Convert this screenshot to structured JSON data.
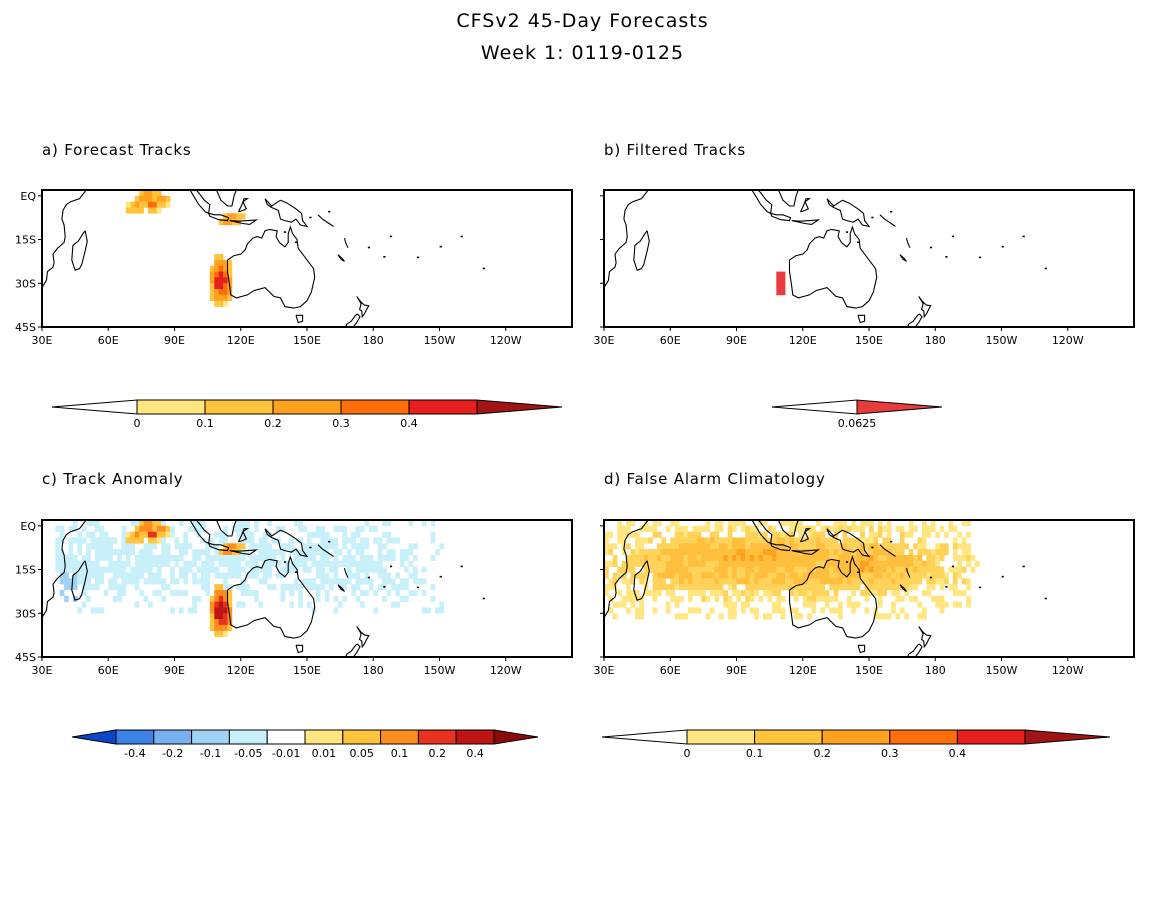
{
  "title": {
    "line1": "CFSv2 45-Day Forecasts",
    "line2": "Week 1: 0119-0125"
  },
  "lon_labels": [
    "30E",
    "60E",
    "90E",
    "120E",
    "150E",
    "180",
    "150W",
    "120W"
  ],
  "lat_labels": [
    "EQ",
    "15S",
    "30S",
    "45S"
  ],
  "panels": [
    {
      "id": "a",
      "label": "a) Forecast Tracks",
      "colorbar": {
        "labels": [
          "0",
          "0.1",
          "0.2",
          "0.3",
          "0.4"
        ],
        "colors": [
          "#ffffff",
          "#ffe680",
          "#ffc33c",
          "#ffa01e",
          "#ff6e0a",
          "#e61e1e",
          "#a01414"
        ]
      }
    },
    {
      "id": "b",
      "label": "b) Filtered Tracks",
      "colorbar": {
        "labels": [
          "0.0625"
        ],
        "colors": [
          "#ffffff",
          "#e83c3c"
        ]
      }
    },
    {
      "id": "c",
      "label": "c) Track Anomaly",
      "colorbar": {
        "labels": [
          "-0.4",
          "-0.2",
          "-0.1",
          "-0.05",
          "-0.01",
          "0.01",
          "0.05",
          "0.1",
          "0.2",
          "0.4"
        ],
        "colors": [
          "#0a46c8",
          "#3c82e6",
          "#78aff0",
          "#a0d2f5",
          "#c8f0fa",
          "#ffffff",
          "#ffe680",
          "#ffc33c",
          "#ff8c1e",
          "#e6321e",
          "#be1414",
          "#8c0a0a"
        ]
      }
    },
    {
      "id": "d",
      "label": "d) False Alarm Climatology",
      "colorbar": {
        "labels": [
          "0",
          "0.1",
          "0.2",
          "0.3",
          "0.4"
        ],
        "colors": [
          "#ffffff",
          "#ffe680",
          "#ffc33c",
          "#ffa01e",
          "#ff6e0a",
          "#e61e1e",
          "#a01414"
        ]
      }
    }
  ],
  "colors": {
    "coast": "#000000",
    "frame": "#000000"
  }
}
